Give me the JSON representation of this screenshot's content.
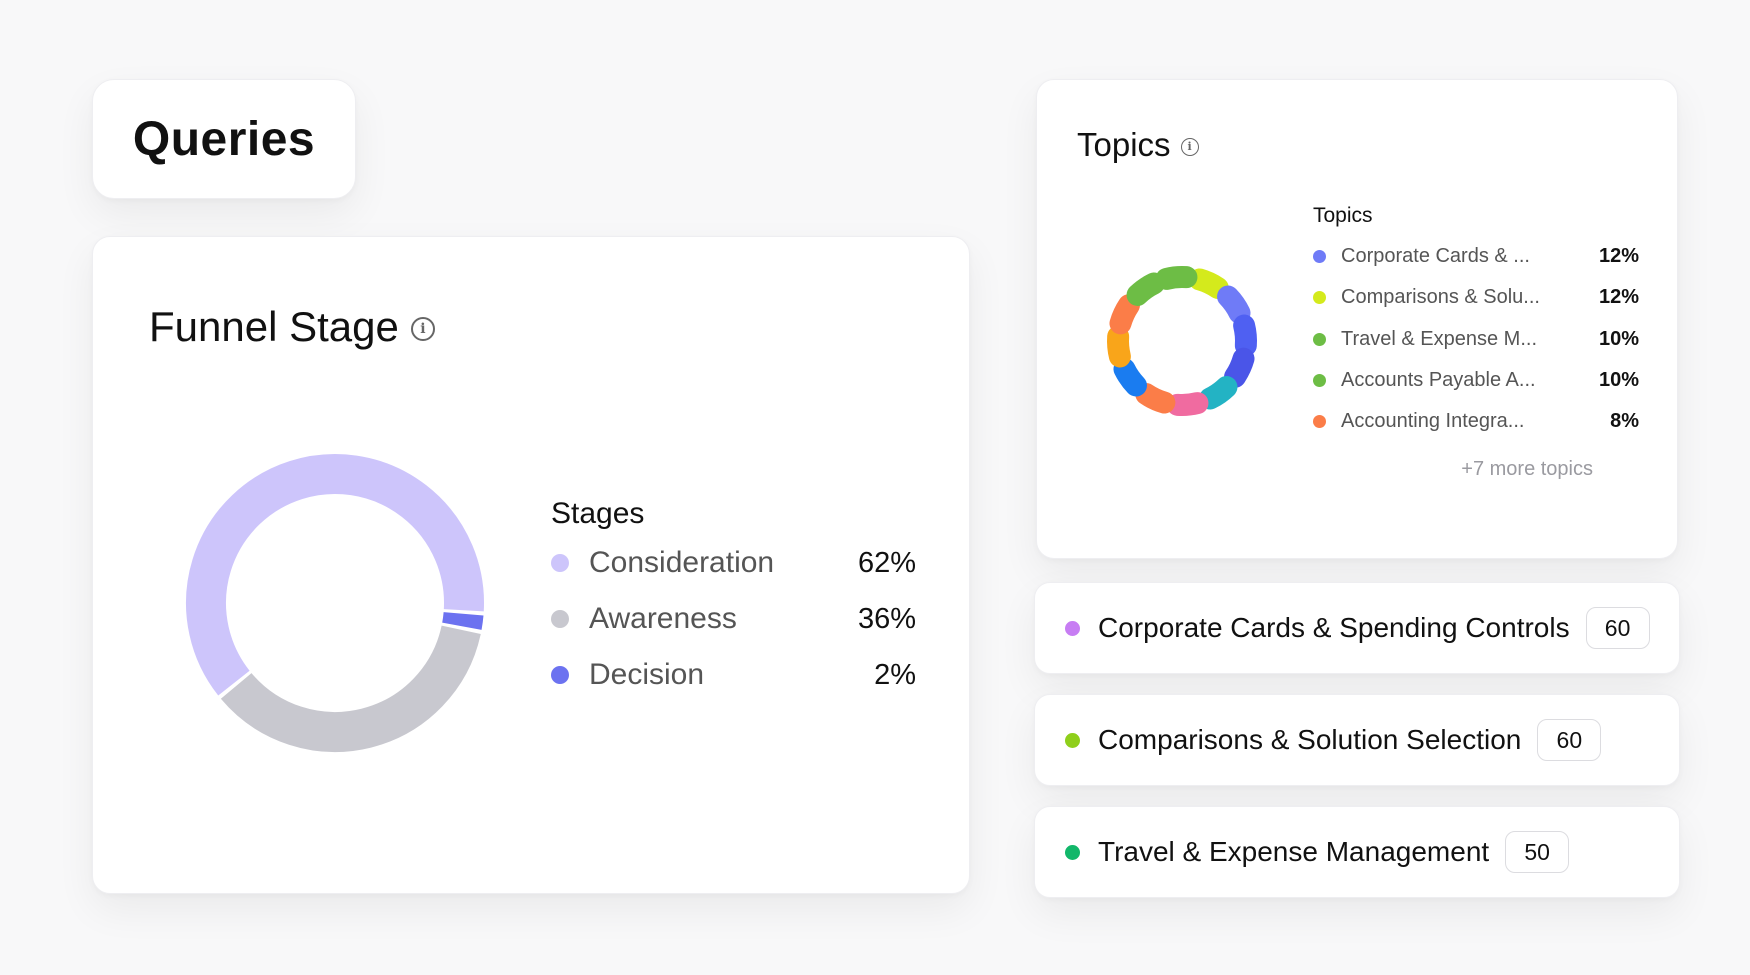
{
  "queries": {
    "title": "Queries"
  },
  "funnel": {
    "title": "Funnel Stage",
    "legend_title": "Stages",
    "stages": [
      {
        "label": "Consideration",
        "value": "62%",
        "color": "#cdc5fb"
      },
      {
        "label": "Awareness",
        "value": "36%",
        "color": "#c8c8cf"
      },
      {
        "label": "Decision",
        "value": "2%",
        "color": "#6c72f0"
      }
    ]
  },
  "topics": {
    "title": "Topics",
    "legend_title": "Topics",
    "items": [
      {
        "label": "Corporate Cards & ...",
        "value": "12%",
        "color": "#6f7bf7"
      },
      {
        "label": "Comparisons & Solu...",
        "value": "12%",
        "color": "#d4ea1c"
      },
      {
        "label": "Travel & Expense M...",
        "value": "10%",
        "color": "#6dbd45"
      },
      {
        "label": "Accounts Payable A...",
        "value": "10%",
        "color": "#6dbd45"
      },
      {
        "label": "Accounting Integra...",
        "value": "8%",
        "color": "#fb7d48"
      }
    ],
    "more": "+7 more topics"
  },
  "topic_pills": [
    {
      "label": "Corporate Cards & Spending Controls",
      "count": "60",
      "color": "#c77df3"
    },
    {
      "label": "Comparisons & Solution Selection",
      "count": "60",
      "color": "#8fcf1b"
    },
    {
      "label": "Travel & Expense Management",
      "count": "50",
      "color": "#12b76a"
    }
  ],
  "chart_data": [
    {
      "type": "pie",
      "categories": [
        "Consideration",
        "Awareness",
        "Decision"
      ],
      "values": [
        62,
        36,
        2
      ],
      "colors": [
        "#cdc5fb",
        "#c8c8cf",
        "#6c72f0"
      ]
    },
    {
      "type": "pie",
      "categories": [
        "Corporate Cards & ...",
        "Comparisons & Solu...",
        "Travel & Expense M...",
        "Accounts Payable A...",
        "Accounting Integra..."
      ],
      "values": [
        12,
        12,
        10,
        10,
        8
      ],
      "colors": [
        "#6f7bf7",
        "#d4ea1c",
        "#6dbd45",
        "#6dbd45",
        "#fb7d48"
      ],
      "segment_colors": [
        "#d4ea1c",
        "#6f7bf7",
        "#4f60f2",
        "#4a55e8",
        "#23b3c4",
        "#f06ba0",
        "#fb7d48",
        "#1a7cf0",
        "#f9a51a",
        "#fb7d48",
        "#6dbd45",
        "#6dbd45"
      ]
    }
  ]
}
